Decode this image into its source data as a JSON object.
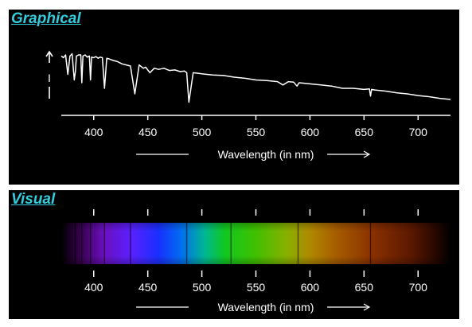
{
  "panels": {
    "graphical": {
      "title": "Graphical"
    },
    "visual": {
      "title": "Visual"
    }
  },
  "colors": {
    "title": "#33ccdd",
    "background": "#000000",
    "foreground": "#ffffff"
  },
  "chart_data": [
    {
      "type": "line",
      "title": "Graphical",
      "xlabel": "Wavelength (in nm)",
      "ylabel": "I",
      "xlim": [
        370,
        730
      ],
      "ylim": [
        0,
        1
      ],
      "x_ticks": [
        400,
        450,
        500,
        550,
        600,
        650,
        700
      ],
      "grid": false,
      "series": [
        {
          "x": [
            370,
            372,
            374,
            376,
            378,
            380,
            382,
            383,
            384,
            386,
            388,
            389,
            390,
            392,
            394,
            396,
            397,
            398,
            400,
            402,
            404,
            406,
            408,
            410,
            412,
            414,
            418,
            422,
            426,
            430,
            434,
            438,
            442,
            446,
            448,
            452,
            456,
            460,
            465,
            470,
            475,
            480,
            484,
            486,
            488,
            492,
            500,
            510,
            520,
            530,
            540,
            550,
            560,
            570,
            575,
            580,
            585,
            588,
            590,
            600,
            610,
            620,
            630,
            640,
            650,
            655,
            656,
            657,
            660,
            670,
            680,
            690,
            700,
            710,
            720,
            730
          ],
          "y": [
            0.88,
            0.85,
            0.9,
            0.55,
            0.88,
            0.92,
            0.45,
            0.6,
            0.88,
            0.9,
            0.9,
            0.4,
            0.88,
            0.9,
            0.86,
            0.88,
            0.45,
            0.86,
            0.85,
            0.87,
            0.84,
            0.86,
            0.85,
            0.3,
            0.84,
            0.83,
            0.8,
            0.78,
            0.74,
            0.72,
            0.7,
            0.2,
            0.72,
            0.66,
            0.68,
            0.58,
            0.66,
            0.64,
            0.66,
            0.62,
            0.63,
            0.6,
            0.61,
            0.58,
            0.05,
            0.58,
            0.56,
            0.54,
            0.53,
            0.5,
            0.48,
            0.45,
            0.44,
            0.42,
            0.36,
            0.42,
            0.41,
            0.34,
            0.4,
            0.38,
            0.36,
            0.34,
            0.3,
            0.3,
            0.28,
            0.29,
            0.16,
            0.28,
            0.27,
            0.25,
            0.22,
            0.2,
            0.17,
            0.15,
            0.12,
            0.1
          ]
        }
      ]
    },
    {
      "type": "heatmap",
      "title": "Visual",
      "xlabel": "Wavelength (in nm)",
      "xlim": [
        370,
        730
      ],
      "x_ticks": [
        400,
        450,
        500,
        550,
        600,
        650,
        700
      ],
      "absorption_lines": [
        383,
        389,
        397,
        410,
        434,
        486,
        527,
        589,
        656
      ]
    }
  ]
}
